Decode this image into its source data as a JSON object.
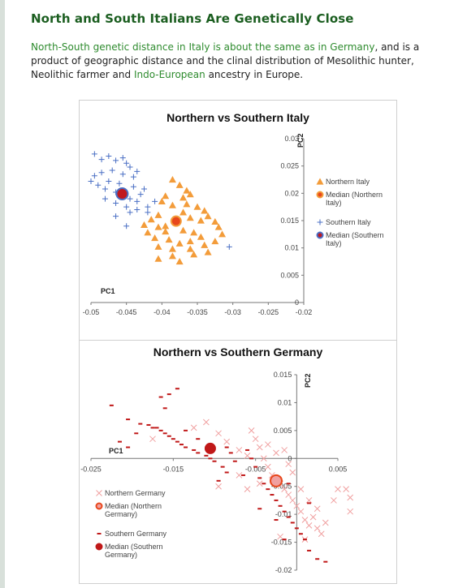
{
  "article": {
    "title": "North and South Italians Are Genetically Close",
    "intro": {
      "link1": "North-South genetic distance in Italy is about the same as in Germany",
      "text1": ", and is a product of geographic distance and the clinal distribution of Mesolithic hunter, Neolithic farmer and ",
      "link2": "Indo-European",
      "text2": " ancestry in Europe."
    }
  },
  "colors": {
    "title": "#1b5e20",
    "link": "#2e8b2e",
    "north_it": "#f39c3a",
    "south_it": "#4a6fc4",
    "median_it_north": "#e8471c",
    "median_it_south": "#c0181f",
    "de_north": "#f0a0a0",
    "de_south": "#c01818"
  },
  "chart_data": [
    {
      "type": "scatter",
      "title": "Northern vs Southern Italy",
      "xlabel": "PC1",
      "ylabel": "PC2",
      "xlim": [
        -0.05,
        -0.02
      ],
      "ylim": [
        0,
        0.03
      ],
      "x_ticks": [
        "-0.05",
        "-0.045",
        "-0.04",
        "-0.035",
        "-0.03",
        "-0.025",
        "-0.02"
      ],
      "y_ticks": [
        "0.03",
        "0.025",
        "0.02",
        "0.015",
        "0.01",
        "0.005",
        "0"
      ],
      "legend_position": "right",
      "series": [
        {
          "name": "Northern Italy",
          "marker": "triangle",
          "points": [
            [
              -0.0385,
              0.0225
            ],
            [
              -0.0375,
              0.0215
            ],
            [
              -0.0365,
              0.0205
            ],
            [
              -0.036,
              0.0198
            ],
            [
              -0.037,
              0.0192
            ],
            [
              -0.0395,
              0.0195
            ],
            [
              -0.04,
              0.0185
            ],
            [
              -0.0385,
              0.0178
            ],
            [
              -0.0365,
              0.018
            ],
            [
              -0.035,
              0.0175
            ],
            [
              -0.034,
              0.0168
            ],
            [
              -0.0335,
              0.0158
            ],
            [
              -0.0345,
              0.015
            ],
            [
              -0.0325,
              0.0148
            ],
            [
              -0.036,
              0.0155
            ],
            [
              -0.037,
              0.0165
            ],
            [
              -0.0405,
              0.016
            ],
            [
              -0.0415,
              0.0152
            ],
            [
              -0.0425,
              0.0142
            ],
            [
              -0.0405,
              0.0138
            ],
            [
              -0.0395,
              0.013
            ],
            [
              -0.037,
              0.0132
            ],
            [
              -0.0355,
              0.0128
            ],
            [
              -0.0345,
              0.012
            ],
            [
              -0.036,
              0.0112
            ],
            [
              -0.0375,
              0.0108
            ],
            [
              -0.039,
              0.0115
            ],
            [
              -0.041,
              0.0118
            ],
            [
              -0.0405,
              0.0102
            ],
            [
              -0.0385,
              0.0098
            ],
            [
              -0.036,
              0.0098
            ],
            [
              -0.034,
              0.0105
            ],
            [
              -0.0325,
              0.0112
            ],
            [
              -0.0315,
              0.0125
            ],
            [
              -0.032,
              0.0138
            ],
            [
              -0.0335,
              0.0092
            ],
            [
              -0.0355,
              0.0088
            ],
            [
              -0.0385,
              0.0085
            ],
            [
              -0.0405,
              0.008
            ],
            [
              -0.0375,
              0.0075
            ],
            [
              -0.0395,
              0.014
            ],
            [
              -0.042,
              0.0128
            ]
          ]
        },
        {
          "name": "Median (Northern Italy)",
          "marker": "circle",
          "points": [
            [
              -0.038,
              0.0149
            ]
          ]
        },
        {
          "name": "Southern Italy",
          "marker": "plus",
          "points": [
            [
              -0.0495,
              0.0272
            ],
            [
              -0.0485,
              0.0262
            ],
            [
              -0.0475,
              0.0268
            ],
            [
              -0.0465,
              0.026
            ],
            [
              -0.0455,
              0.0265
            ],
            [
              -0.045,
              0.0255
            ],
            [
              -0.0445,
              0.0248
            ],
            [
              -0.0435,
              0.024
            ],
            [
              -0.044,
              0.023
            ],
            [
              -0.0455,
              0.0235
            ],
            [
              -0.047,
              0.0242
            ],
            [
              -0.0485,
              0.0238
            ],
            [
              -0.0495,
              0.0232
            ],
            [
              -0.05,
              0.0222
            ],
            [
              -0.049,
              0.0215
            ],
            [
              -0.048,
              0.0208
            ],
            [
              -0.0465,
              0.0202
            ],
            [
              -0.0455,
              0.0196
            ],
            [
              -0.0445,
              0.019
            ],
            [
              -0.0435,
              0.0185
            ],
            [
              -0.043,
              0.0198
            ],
            [
              -0.0425,
              0.0208
            ],
            [
              -0.044,
              0.0212
            ],
            [
              -0.046,
              0.0218
            ],
            [
              -0.0475,
              0.0222
            ],
            [
              -0.0465,
              0.0182
            ],
            [
              -0.045,
              0.0175
            ],
            [
              -0.0435,
              0.017
            ],
            [
              -0.042,
              0.0175
            ],
            [
              -0.041,
              0.0185
            ],
            [
              -0.0465,
              0.0158
            ],
            [
              -0.045,
              0.014
            ],
            [
              -0.042,
              0.0165
            ],
            [
              -0.048,
              0.019
            ],
            [
              -0.0445,
              0.0165
            ],
            [
              -0.0305,
              0.0102
            ]
          ]
        },
        {
          "name": "Median (Southern Italy)",
          "marker": "circle",
          "points": [
            [
              -0.0456,
              0.0199
            ]
          ]
        }
      ]
    },
    {
      "type": "scatter",
      "title": "Northern vs Southern Germany",
      "xlabel": "PC1",
      "ylabel": "PC2",
      "xlim": [
        -0.025,
        0.005
      ],
      "ylim": [
        -0.02,
        0.015
      ],
      "x_ticks": [
        "-0.025",
        "-0.015",
        "-0.005",
        "0.005"
      ],
      "y_ticks": [
        "0.015",
        "0.01",
        "0.005",
        "0",
        "-0.005",
        "-0.01",
        "-0.015",
        "-0.02"
      ],
      "legend_position": "bottom-left",
      "series": [
        {
          "name": "Northern Germany",
          "marker": "x",
          "points": [
            [
              -0.0125,
              0.0055
            ],
            [
              -0.011,
              0.0065
            ],
            [
              -0.0095,
              0.0045
            ],
            [
              -0.0085,
              0.003
            ],
            [
              -0.007,
              0.0015
            ],
            [
              -0.006,
              0.0005
            ],
            [
              -0.0055,
              0.005
            ],
            [
              -0.005,
              0.0035
            ],
            [
              -0.0045,
              0.002
            ],
            [
              -0.004,
              0.0
            ],
            [
              -0.0035,
              -0.0015
            ],
            [
              -0.003,
              -0.003
            ],
            [
              -0.0025,
              0.001
            ],
            [
              -0.002,
              -0.0045
            ],
            [
              -0.0015,
              -0.0055
            ],
            [
              -0.001,
              -0.0065
            ],
            [
              -0.0005,
              -0.0075
            ],
            [
              0.0,
              -0.0085
            ],
            [
              0.0005,
              -0.0095
            ],
            [
              0.001,
              -0.011
            ],
            [
              0.0015,
              -0.012
            ],
            [
              0.002,
              -0.0105
            ],
            [
              0.0025,
              -0.0125
            ],
            [
              0.003,
              -0.0135
            ],
            [
              0.0025,
              -0.009
            ],
            [
              0.0015,
              -0.0075
            ],
            [
              0.0005,
              -0.0055
            ],
            [
              -0.0005,
              -0.0025
            ],
            [
              -0.001,
              -0.001
            ],
            [
              -0.0015,
              0.0015
            ],
            [
              -0.0045,
              -0.0045
            ],
            [
              -0.006,
              -0.0055
            ],
            [
              -0.0095,
              -0.005
            ],
            [
              -0.0035,
              0.0025
            ],
            [
              0.0035,
              -0.0115
            ],
            [
              0.005,
              -0.0055
            ],
            [
              0.006,
              -0.0055
            ],
            [
              0.0065,
              -0.007
            ],
            [
              0.0065,
              -0.0095
            ],
            [
              0.0045,
              -0.0075
            ],
            [
              -0.002,
              -0.014
            ],
            [
              0.001,
              -0.0145
            ],
            [
              -0.0175,
              0.0035
            ],
            [
              -0.007,
              -0.003
            ]
          ]
        },
        {
          "name": "Median (Northern Germany)",
          "marker": "circle",
          "points": [
            [
              -0.0025,
              -0.004
            ]
          ]
        },
        {
          "name": "Southern Germany",
          "marker": "dash",
          "points": [
            [
              -0.0145,
              0.0125
            ],
            [
              -0.0155,
              0.0115
            ],
            [
              -0.0165,
              0.011
            ],
            [
              -0.016,
              0.009
            ],
            [
              -0.0225,
              0.0095
            ],
            [
              -0.0205,
              0.007
            ],
            [
              -0.019,
              0.0062
            ],
            [
              -0.018,
              0.006
            ],
            [
              -0.017,
              0.0055
            ],
            [
              -0.0165,
              0.005
            ],
            [
              -0.016,
              0.0045
            ],
            [
              -0.0155,
              0.004
            ],
            [
              -0.015,
              0.0035
            ],
            [
              -0.0145,
              0.003
            ],
            [
              -0.014,
              0.0025
            ],
            [
              -0.0135,
              0.002
            ],
            [
              -0.0125,
              0.0015
            ],
            [
              -0.012,
              0.001
            ],
            [
              -0.011,
              0.0005
            ],
            [
              -0.0105,
              0.0
            ],
            [
              -0.01,
              -0.0005
            ],
            [
              -0.009,
              -0.0015
            ],
            [
              -0.0085,
              -0.0025
            ],
            [
              -0.008,
              0.001
            ],
            [
              -0.0075,
              -0.0005
            ],
            [
              -0.006,
              0.0015
            ],
            [
              -0.0055,
              0.0
            ],
            [
              -0.005,
              -0.0015
            ],
            [
              -0.0045,
              -0.0035
            ],
            [
              -0.004,
              -0.0045
            ],
            [
              -0.0035,
              -0.0055
            ],
            [
              -0.003,
              -0.0065
            ],
            [
              -0.0025,
              -0.0075
            ],
            [
              -0.002,
              -0.0085
            ],
            [
              -0.0015,
              -0.0095
            ],
            [
              -0.001,
              -0.0105
            ],
            [
              -0.0005,
              -0.0115
            ],
            [
              0.0,
              -0.0125
            ],
            [
              0.0005,
              -0.0135
            ],
            [
              0.001,
              -0.0145
            ],
            [
              0.0015,
              -0.0165
            ],
            [
              0.0025,
              -0.018
            ],
            [
              0.0035,
              -0.0185
            ],
            [
              -0.0175,
              0.0055
            ],
            [
              -0.0195,
              0.0045
            ],
            [
              -0.0215,
              0.003
            ],
            [
              -0.0205,
              0.002
            ],
            [
              -0.0135,
              0.005
            ],
            [
              -0.012,
              0.0035
            ],
            [
              -0.0085,
              0.002
            ],
            [
              -0.0065,
              -0.003
            ],
            [
              -0.0095,
              -0.004
            ],
            [
              -0.001,
              -0.0045
            ],
            [
              0.0015,
              -0.008
            ],
            [
              -0.0025,
              -0.011
            ],
            [
              -0.0015,
              -0.0145
            ],
            [
              -0.0045,
              -0.009
            ]
          ]
        },
        {
          "name": "Median (Southern Germany)",
          "marker": "circle",
          "points": [
            [
              -0.0105,
              0.0018
            ]
          ]
        }
      ]
    }
  ]
}
